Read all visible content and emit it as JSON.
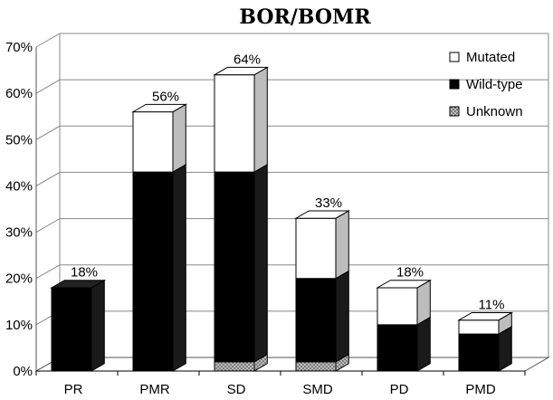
{
  "chart_data": {
    "type": "bar",
    "stacked": true,
    "style": "3d",
    "title": "BOR/BOMR",
    "categories": [
      "PR",
      "PMR",
      "SD",
      "SMD",
      "PD",
      "PMD"
    ],
    "series": [
      {
        "name": "Unknown",
        "color": "#999999",
        "pattern": "dotted",
        "values": [
          0,
          0,
          2,
          2,
          0,
          0
        ]
      },
      {
        "name": "Wild-type",
        "color": "#000000",
        "values": [
          18,
          43,
          41,
          18,
          10,
          8
        ]
      },
      {
        "name": "Mutated",
        "color": "#ffffff",
        "values": [
          0,
          13,
          21,
          13,
          8,
          3
        ]
      }
    ],
    "totals_labels": [
      "18%",
      "56%",
      "64%",
      "33%",
      "18%",
      "11%"
    ],
    "legend_order": [
      "Mutated",
      "Wild-type",
      "Unknown"
    ],
    "legend_position": "top-right",
    "ylim": [
      0,
      70
    ],
    "yticks": [
      "0%",
      "10%",
      "20%",
      "30%",
      "40%",
      "50%",
      "60%",
      "70%"
    ],
    "grid": true
  }
}
